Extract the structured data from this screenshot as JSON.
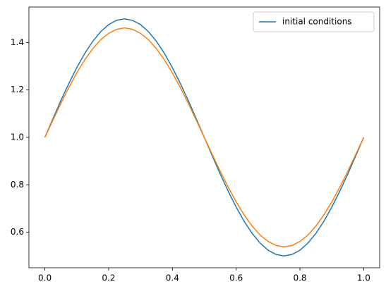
{
  "chart_data": {
    "type": "line",
    "x": [
      0,
      0.025,
      0.05,
      0.075,
      0.1,
      0.125,
      0.15,
      0.175,
      0.2,
      0.225,
      0.25,
      0.275,
      0.3,
      0.325,
      0.35,
      0.375,
      0.4,
      0.425,
      0.45,
      0.475,
      0.5,
      0.525,
      0.55,
      0.575,
      0.6,
      0.625,
      0.65,
      0.675,
      0.7,
      0.725,
      0.75,
      0.775,
      0.8,
      0.825,
      0.85,
      0.875,
      0.9,
      0.925,
      0.95,
      0.975,
      1
    ],
    "series": [
      {
        "name": "initial conditions",
        "color": "#1f77b4",
        "values": [
          1,
          1.078,
          1.155,
          1.227,
          1.294,
          1.354,
          1.405,
          1.446,
          1.476,
          1.494,
          1.5,
          1.494,
          1.476,
          1.446,
          1.405,
          1.354,
          1.294,
          1.227,
          1.155,
          1.078,
          1,
          0.922,
          0.845,
          0.773,
          0.706,
          0.646,
          0.595,
          0.554,
          0.524,
          0.506,
          0.5,
          0.506,
          0.524,
          0.554,
          0.595,
          0.646,
          0.706,
          0.773,
          0.845,
          0.922,
          1
        ]
      },
      {
        "color": "#ff7f0e",
        "values": [
          1,
          1.072,
          1.143,
          1.21,
          1.272,
          1.327,
          1.374,
          1.412,
          1.439,
          1.456,
          1.462,
          1.456,
          1.439,
          1.412,
          1.374,
          1.327,
          1.272,
          1.21,
          1.143,
          1.072,
          1,
          0.928,
          0.857,
          0.79,
          0.728,
          0.673,
          0.626,
          0.588,
          0.561,
          0.544,
          0.538,
          0.544,
          0.561,
          0.588,
          0.626,
          0.673,
          0.728,
          0.79,
          0.857,
          0.928,
          1
        ]
      }
    ],
    "xlim": [
      -0.05,
      1.05
    ],
    "xticks": [
      {
        "value": 0,
        "label": "0.0"
      },
      0.2,
      0.4,
      0.6,
      0.8,
      {
        "value": 1,
        "label": "1.0"
      }
    ],
    "ylim": [
      0.45,
      1.55
    ],
    "yticks": [
      0.6,
      0.8,
      {
        "value": 1,
        "label": "1.0"
      },
      1.2,
      1.4
    ],
    "grid": false,
    "legend": "upper right"
  }
}
